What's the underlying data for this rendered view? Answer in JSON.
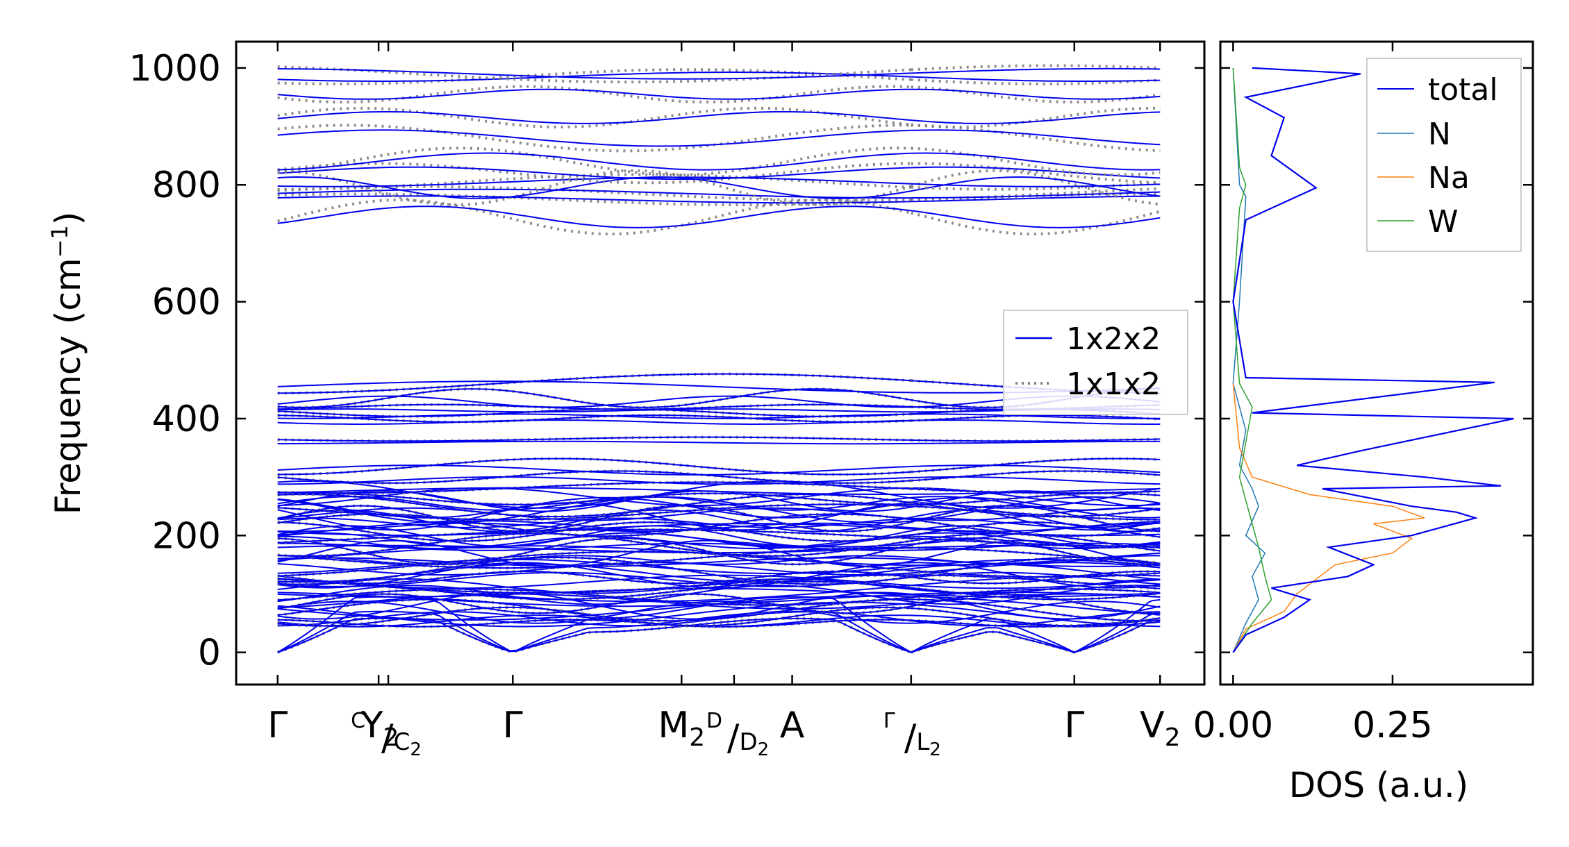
{
  "chart_data": [
    {
      "type": "line",
      "panel": "phonon-band-structure",
      "ylabel": "Frequency (cm",
      "ylabel_sup": "−1",
      "ylabel_tail": ")",
      "ylim": [
        -55,
        1045
      ],
      "yticks": [
        0,
        200,
        400,
        600,
        800,
        1000
      ],
      "ytick_labels": [
        "0",
        "200",
        "400",
        "600",
        "800",
        "1000"
      ],
      "xlim": [
        -0.3,
        6.7
      ],
      "xticks": [
        {
          "pos": 0.0,
          "label": "Γ",
          "sub": ""
        },
        {
          "pos": 0.73,
          "label": "",
          "sub": "",
          "sup": "C",
          "bar": "Y",
          "bar_sub": "2"
        },
        {
          "pos": 0.8,
          "label": "",
          "sub": "",
          "slash": "/",
          "slash_label": "C",
          "slash_sub": "2"
        },
        {
          "pos": 1.7,
          "label": "Γ",
          "sub": ""
        },
        {
          "pos": 2.92,
          "label": "M",
          "sub": "2"
        },
        {
          "pos": 3.3,
          "label": "",
          "sub": "",
          "sup": "D",
          "slash": "/",
          "slash_label": "D",
          "slash_sub": "2"
        },
        {
          "pos": 3.72,
          "label": "A",
          "sub": ""
        },
        {
          "pos": 4.58,
          "label": "",
          "sub": "",
          "sup": "Γ",
          "slash": "/",
          "slash_label": "L",
          "slash_sub": "2"
        },
        {
          "pos": 5.76,
          "label": "Γ",
          "sub": ""
        },
        {
          "pos": 6.38,
          "label": "V",
          "sub": "2"
        }
      ],
      "path_breaks": [
        4.58
      ],
      "series": [
        {
          "name": "1x2x2",
          "color": "#0000ee",
          "style": "solid"
        },
        {
          "name": "1x1x2",
          "color": "#808080",
          "style": "dotted"
        }
      ],
      "band_groups": {
        "acoustic_top_at_mid": 60,
        "high_band_levels": [
          745,
          775,
          785,
          795,
          805,
          820,
          840,
          880,
          915,
          955,
          985,
          990
        ],
        "mid_band_levels": [
          282,
          300,
          318,
          365,
          400,
          410,
          420,
          435,
          460
        ],
        "low_band_range": [
          50,
          270
        ]
      },
      "legend": {
        "position": "center-right",
        "entries": [
          "1x2x2",
          "1x1x2"
        ]
      }
    },
    {
      "type": "line",
      "panel": "density-of-states",
      "xlabel": "DOS (a.u.)",
      "xlim": [
        -0.02,
        0.47
      ],
      "xticks": [
        0.0,
        0.25
      ],
      "xtick_labels": [
        "0.00",
        "0.25"
      ],
      "ylim": [
        -55,
        1045
      ],
      "series": [
        {
          "name": "total",
          "color": "#0000ee",
          "x": [
            0,
            0.02,
            0.08,
            0.12,
            0.06,
            0.18,
            0.22,
            0.15,
            0.28,
            0.33,
            0.38,
            0.35,
            0.28,
            0.14,
            0.42,
            0.3,
            0.1,
            0.2,
            0.44,
            0.03,
            0.41,
            0.02,
            0.0,
            0.02,
            0.06,
            0.1,
            0.13,
            0.06,
            0.08,
            0.02,
            0.2,
            0.03
          ],
          "y": [
            0,
            30,
            60,
            90,
            110,
            130,
            150,
            180,
            200,
            215,
            230,
            240,
            250,
            280,
            285,
            300,
            320,
            345,
            400,
            410,
            462,
            470,
            600,
            740,
            760,
            780,
            795,
            850,
            915,
            950,
            990,
            1000
          ]
        },
        {
          "name": "N",
          "color": "#1f77b4",
          "x": [
            0,
            0.02,
            0.04,
            0.03,
            0.05,
            0.02,
            0.04,
            0.03,
            0.01,
            0.02,
            0.0,
            0.01,
            0.02,
            0.01,
            0.0
          ],
          "y": [
            0,
            50,
            90,
            130,
            170,
            200,
            250,
            280,
            320,
            380,
            460,
            600,
            780,
            800,
            1000
          ]
        },
        {
          "name": "Na",
          "color": "#ff7f0e",
          "x": [
            0,
            0.02,
            0.08,
            0.1,
            0.16,
            0.25,
            0.28,
            0.22,
            0.3,
            0.25,
            0.12,
            0.03,
            0.01,
            0.0
          ],
          "y": [
            0,
            40,
            70,
            100,
            150,
            170,
            195,
            220,
            230,
            250,
            270,
            300,
            350,
            460
          ]
        },
        {
          "name": "W",
          "color": "#2ca02c",
          "x": [
            0,
            0.03,
            0.06,
            0.05,
            0.04,
            0.03,
            0.02,
            0.01,
            0.03,
            0.01,
            0.0,
            0.01,
            0.02,
            0.01,
            0.0
          ],
          "y": [
            0,
            50,
            90,
            130,
            180,
            220,
            260,
            300,
            420,
            460,
            600,
            760,
            800,
            830,
            1000
          ]
        }
      ],
      "legend": {
        "position": "top-right",
        "entries": [
          "total",
          "N",
          "Na",
          "W"
        ]
      }
    }
  ]
}
